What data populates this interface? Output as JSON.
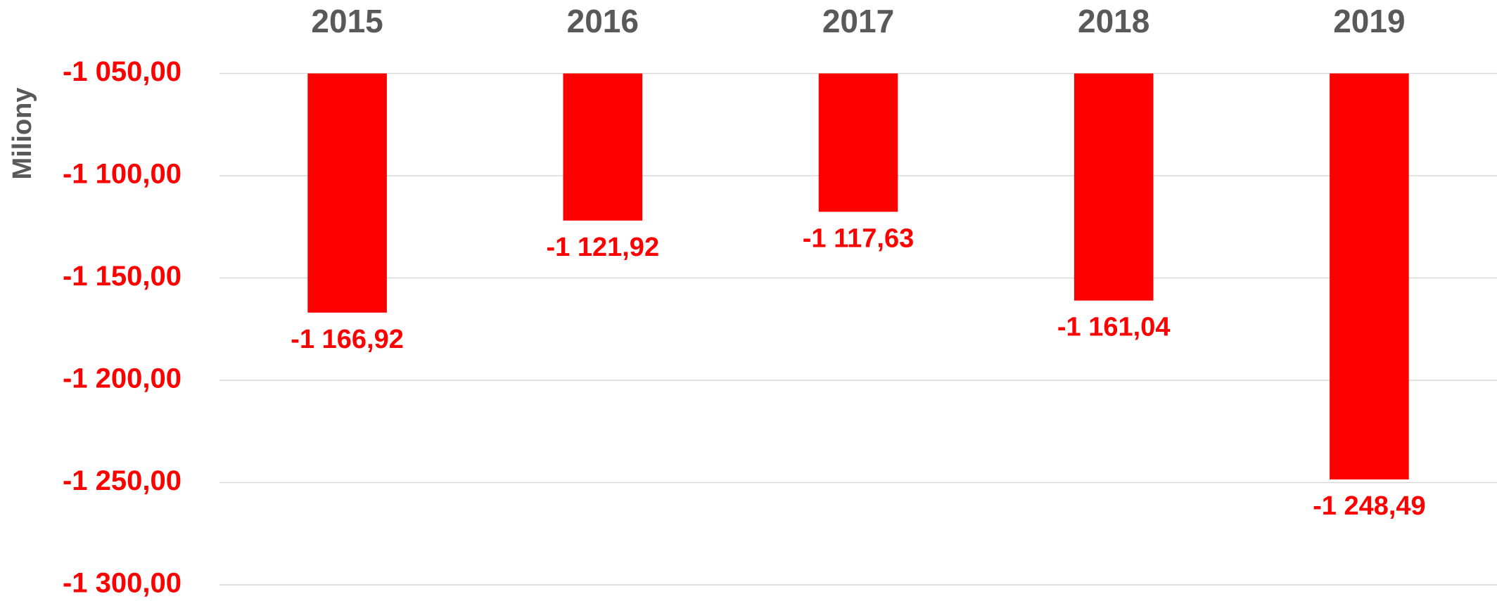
{
  "chart_data": {
    "type": "bar",
    "y_axis_label": "Miliony",
    "categories": [
      "2015",
      "2016",
      "2017",
      "2018",
      "2019"
    ],
    "values": [
      -1166.92,
      -1121.92,
      -1117.63,
      -1161.04,
      -1248.49
    ],
    "value_labels": [
      "-1 166,92",
      "-1 121,92",
      "-1 117,63",
      "-1 161,04",
      "-1 248,49"
    ],
    "color": "#ff0000",
    "ylim": [
      -1300,
      -1050
    ],
    "yticks": [
      {
        "value": -1050,
        "label": "-1 050,00"
      },
      {
        "value": -1100,
        "label": "-1 100,00"
      },
      {
        "value": -1150,
        "label": "-1 150,00"
      },
      {
        "value": -1200,
        "label": "-1 200,00"
      },
      {
        "value": -1250,
        "label": "-1 250,00"
      },
      {
        "value": -1300,
        "label": "-1 300,00"
      }
    ],
    "grid": true
  }
}
